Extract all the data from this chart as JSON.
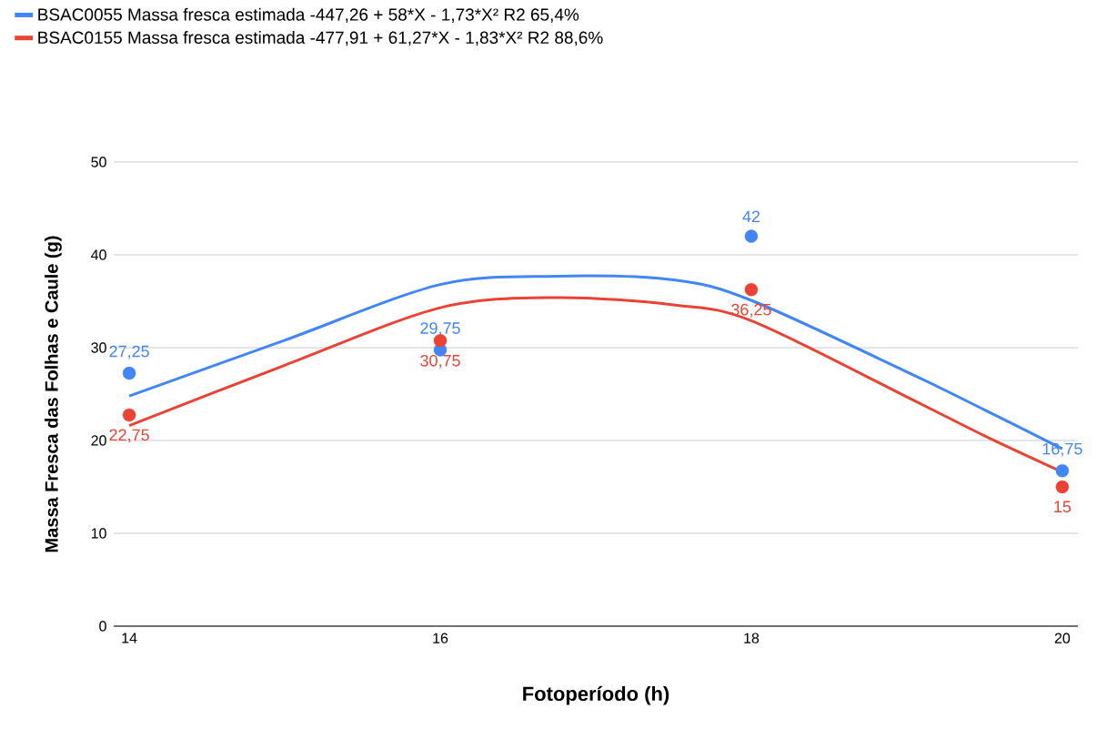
{
  "chart_data": {
    "type": "scatter",
    "xlabel": "Fotoperíodo (h)",
    "ylabel": "Massa Fresca das Folhas e Caule (g)",
    "xlim": [
      13.9,
      20.1
    ],
    "xticks": [
      14,
      16,
      18,
      20
    ],
    "ylim": [
      0,
      50
    ],
    "yticks": [
      0,
      10,
      20,
      30,
      40,
      50
    ],
    "grid": "y",
    "legend": "top left",
    "series": [
      {
        "color": "#4285f4",
        "marker": "circle",
        "x": [
          14,
          16,
          18,
          20
        ],
        "values": [
          27.25,
          29.75,
          42,
          16.75
        ],
        "value_labels": [
          "27,25",
          "29,75",
          "42",
          "16,75"
        ]
      },
      {
        "color": "#ea4335",
        "marker": "circle",
        "x": [
          14,
          16,
          18,
          20
        ],
        "values": [
          22.75,
          30.75,
          36.25,
          15
        ],
        "value_labels": [
          "22,75",
          "30,75",
          "36,25",
          "15"
        ]
      },
      {
        "type": "line",
        "name": "BSAC0055 Massa fresca estimada -447,26 + 58*X - 1,73*X² R2 65,4%",
        "color": "#4285f4",
        "marker": "none",
        "x": [
          14,
          15,
          16,
          16.75,
          17.5,
          18,
          19,
          19.5,
          20
        ],
        "values": [
          24.8,
          30.8,
          36.8,
          37.7,
          37.3,
          35.1,
          27.4,
          23.3,
          19.1
        ]
      },
      {
        "type": "line",
        "name": "BSAC0155 Massa fresca estimada -477,91 + 61,27*X - 1,83*X² R2 88,6%",
        "color": "#ea4335",
        "marker": "none",
        "x": [
          14,
          15,
          16,
          16.75,
          17.5,
          18,
          19,
          19.5,
          20
        ],
        "values": [
          21.6,
          28.1,
          34.3,
          35.4,
          34.6,
          32.9,
          24.7,
          20.5,
          16.6
        ]
      }
    ]
  }
}
